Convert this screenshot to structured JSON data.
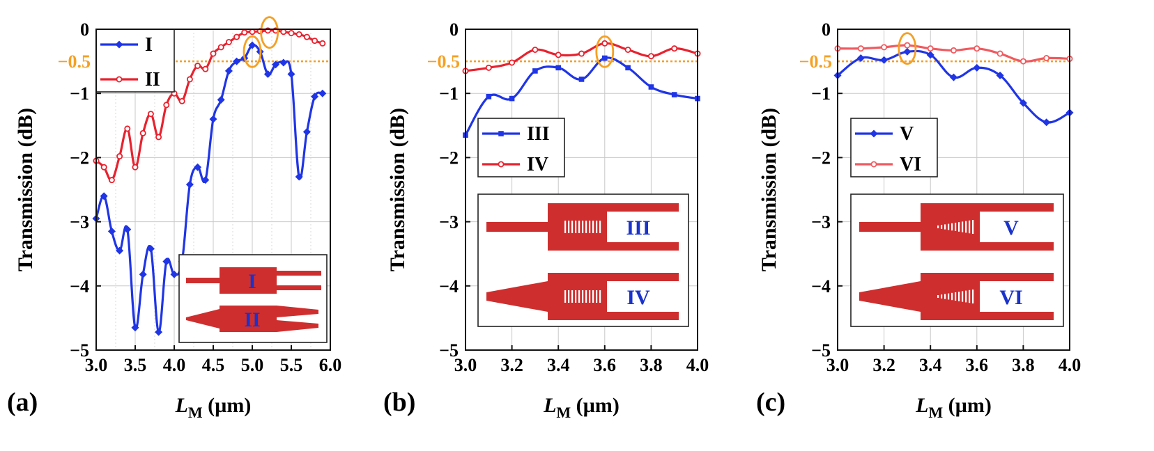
{
  "figure": {
    "ref_line_label": "−0.5",
    "colors": {
      "blue": "#1f35e6",
      "red": "#e8222e",
      "pink": "#f05a5f",
      "orange": "#f5a023",
      "inset_red": "#cf2e2e",
      "inset_text": "#1a33cc"
    }
  },
  "chart_data": [
    {
      "type": "line",
      "panel_label": "(a)",
      "xlabel_main": "L",
      "xlabel_sub": "M",
      "xlabel_unit": " (µm)",
      "ylabel": "Transmission (dB)",
      "xlim": [
        3.0,
        6.0
      ],
      "ylim": [
        -5,
        0
      ],
      "xticks": [
        3.0,
        3.5,
        4.0,
        4.5,
        5.0,
        5.5,
        6.0
      ],
      "xtick_labels": [
        "3.0",
        "3.5",
        "4.0",
        "4.5",
        "5.0",
        "5.5",
        "6.0"
      ],
      "yticks": [
        0,
        -1,
        -2,
        -3,
        -4,
        -5
      ],
      "ytick_labels": [
        "0",
        "−1",
        "−2",
        "−3",
        "−4",
        "−5"
      ],
      "reference_line": -0.5,
      "legend": [
        "I",
        "II"
      ],
      "series": [
        {
          "name": "I",
          "color": "#1f35e6",
          "marker": "diamond",
          "x": [
            3.0,
            3.1,
            3.2,
            3.3,
            3.4,
            3.5,
            3.6,
            3.7,
            3.8,
            3.9,
            4.0,
            4.1,
            4.2,
            4.3,
            4.4,
            4.5,
            4.6,
            4.7,
            4.8,
            4.9,
            5.0,
            5.1,
            5.2,
            5.3,
            5.4,
            5.5,
            5.6,
            5.7,
            5.8,
            5.9
          ],
          "y": [
            -2.95,
            -2.6,
            -3.15,
            -3.45,
            -3.12,
            -4.65,
            -3.82,
            -3.42,
            -4.72,
            -3.62,
            -3.82,
            -3.62,
            -2.42,
            -2.15,
            -2.35,
            -1.4,
            -1.1,
            -0.65,
            -0.5,
            -0.45,
            -0.25,
            -0.35,
            -0.7,
            -0.55,
            -0.52,
            -0.7,
            -2.3,
            -1.6,
            -1.05,
            -1.0
          ]
        },
        {
          "name": "II",
          "color": "#e8222e",
          "marker": "circle",
          "x": [
            3.0,
            3.1,
            3.2,
            3.3,
            3.4,
            3.5,
            3.6,
            3.7,
            3.8,
            3.9,
            4.0,
            4.1,
            4.2,
            4.3,
            4.4,
            4.5,
            4.6,
            4.7,
            4.8,
            4.9,
            5.0,
            5.1,
            5.2,
            5.3,
            5.4,
            5.5,
            5.6,
            5.7,
            5.8,
            5.9
          ],
          "y": [
            -2.05,
            -2.15,
            -2.35,
            -1.98,
            -1.55,
            -2.15,
            -1.62,
            -1.32,
            -1.68,
            -1.18,
            -1.0,
            -1.12,
            -0.78,
            -0.57,
            -0.62,
            -0.38,
            -0.28,
            -0.2,
            -0.12,
            -0.05,
            -0.04,
            -0.03,
            -0.02,
            -0.02,
            -0.04,
            -0.06,
            -0.08,
            -0.12,
            -0.18,
            -0.22
          ]
        }
      ],
      "highlights": [
        [
          5.0,
          -0.35
        ],
        [
          5.22,
          -0.05
        ]
      ],
      "inset_labels": [
        "I",
        "II"
      ]
    },
    {
      "type": "line",
      "panel_label": "(b)",
      "xlabel_main": "L",
      "xlabel_sub": "M",
      "xlabel_unit": " (µm)",
      "ylabel": "Transmission (dB)",
      "xlim": [
        3.0,
        4.0
      ],
      "ylim": [
        -5,
        0
      ],
      "xticks": [
        3.0,
        3.2,
        3.4,
        3.6,
        3.8,
        4.0
      ],
      "xtick_labels": [
        "3.0",
        "3.2",
        "3.4",
        "3.6",
        "3.8",
        "4.0"
      ],
      "yticks": [
        0,
        -1,
        -2,
        -3,
        -4,
        -5
      ],
      "ytick_labels": [
        "0",
        "−1",
        "−2",
        "−3",
        "−4",
        "−5"
      ],
      "reference_line": -0.5,
      "legend": [
        "III",
        "IV"
      ],
      "series": [
        {
          "name": "III",
          "color": "#1f35e6",
          "marker": "square",
          "x": [
            3.0,
            3.1,
            3.2,
            3.3,
            3.4,
            3.5,
            3.6,
            3.7,
            3.8,
            3.9,
            4.0
          ],
          "y": [
            -1.65,
            -1.05,
            -1.08,
            -0.65,
            -0.6,
            -0.78,
            -0.45,
            -0.6,
            -0.9,
            -1.02,
            -1.08
          ]
        },
        {
          "name": "IV",
          "color": "#e8222e",
          "marker": "circle",
          "x": [
            3.0,
            3.1,
            3.2,
            3.3,
            3.4,
            3.5,
            3.6,
            3.7,
            3.8,
            3.9,
            4.0
          ],
          "y": [
            -0.65,
            -0.6,
            -0.52,
            -0.32,
            -0.4,
            -0.38,
            -0.22,
            -0.32,
            -0.42,
            -0.3,
            -0.38
          ]
        }
      ],
      "highlights": [
        [
          3.6,
          -0.35
        ]
      ],
      "inset_labels": [
        "III",
        "IV"
      ]
    },
    {
      "type": "line",
      "panel_label": "(c)",
      "xlabel_main": "L",
      "xlabel_sub": "M",
      "xlabel_unit": " (µm)",
      "ylabel": "Transmission (dB)",
      "xlim": [
        3.0,
        4.0
      ],
      "ylim": [
        -5,
        0
      ],
      "xticks": [
        3.0,
        3.2,
        3.4,
        3.6,
        3.8,
        4.0
      ],
      "xtick_labels": [
        "3.0",
        "3.2",
        "3.4",
        "3.6",
        "3.8",
        "4.0"
      ],
      "yticks": [
        0,
        -1,
        -2,
        -3,
        -4,
        -5
      ],
      "ytick_labels": [
        "0",
        "−1",
        "−2",
        "−3",
        "−4",
        "−5"
      ],
      "reference_line": -0.5,
      "legend": [
        "V",
        "VI"
      ],
      "series": [
        {
          "name": "V",
          "color": "#1f35e6",
          "marker": "diamond",
          "x": [
            3.0,
            3.1,
            3.2,
            3.3,
            3.4,
            3.5,
            3.6,
            3.7,
            3.8,
            3.9,
            4.0
          ],
          "y": [
            -0.72,
            -0.45,
            -0.48,
            -0.35,
            -0.4,
            -0.75,
            -0.6,
            -0.72,
            -1.15,
            -1.45,
            -1.3
          ]
        },
        {
          "name": "VI",
          "color": "#f05a5f",
          "marker": "circle",
          "x": [
            3.0,
            3.1,
            3.2,
            3.3,
            3.4,
            3.5,
            3.6,
            3.7,
            3.8,
            3.9,
            4.0
          ],
          "y": [
            -0.3,
            -0.3,
            -0.28,
            -0.25,
            -0.3,
            -0.33,
            -0.3,
            -0.38,
            -0.5,
            -0.45,
            -0.46
          ]
        }
      ],
      "highlights": [
        [
          3.3,
          -0.3
        ]
      ],
      "inset_labels": [
        "V",
        "VI"
      ]
    }
  ]
}
